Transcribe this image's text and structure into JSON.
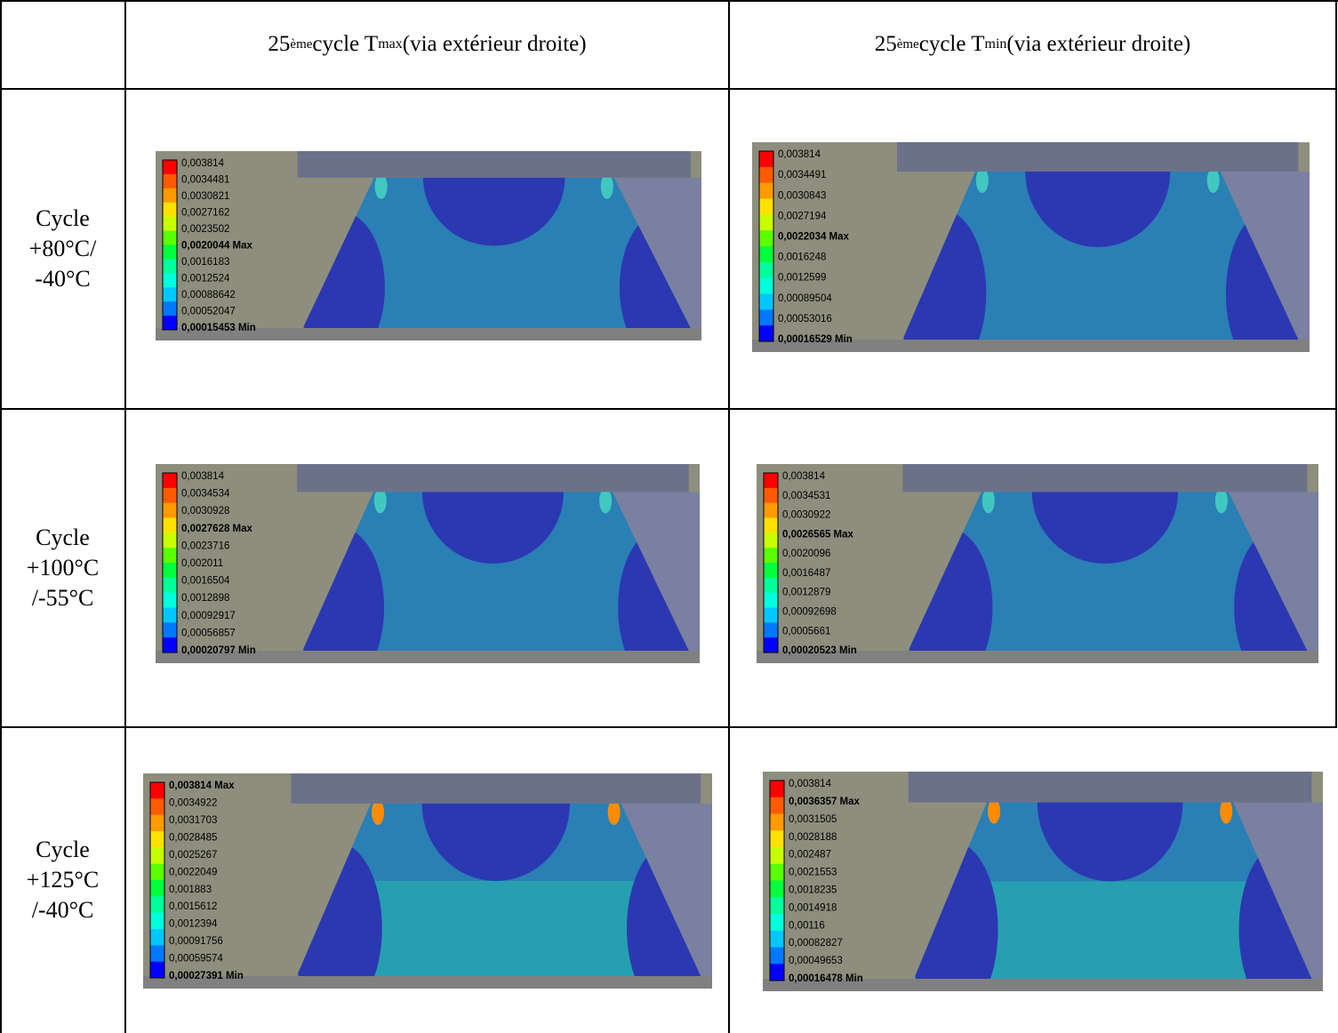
{
  "table": {
    "header": [
      {
        "number": "25",
        "superscript": "ème",
        "text": "cycle T",
        "subscript": "max",
        "note": "(via extérieur droite)"
      },
      {
        "number": "25",
        "superscript": "ème",
        "text": "cycle T",
        "subscript": "min",
        "note": "(via extérieur droite)"
      }
    ],
    "rows": [
      {
        "label": [
          "Cycle",
          "+80°C/",
          "-40°C"
        ],
        "cells": [
          {
            "legend": [
              {
                "text": "0,003814"
              },
              {
                "text": "0,0034481"
              },
              {
                "text": "0,0030821"
              },
              {
                "text": "0,0027162"
              },
              {
                "text": "0,0023502"
              },
              {
                "text": "0,0020044 Max",
                "bold": true
              },
              {
                "text": "0,0016183"
              },
              {
                "text": "0,0012524"
              },
              {
                "text": "0,00088642"
              },
              {
                "text": "0,00052047"
              },
              {
                "text": "0,00015453 Min",
                "bold": true
              }
            ]
          },
          {
            "legend": [
              {
                "text": "0,003814"
              },
              {
                "text": "0,0034491"
              },
              {
                "text": "0,0030843"
              },
              {
                "text": "0,0027194"
              },
              {
                "text": "0,0022034 Max",
                "bold": true
              },
              {
                "text": "0,0016248"
              },
              {
                "text": "0,0012599"
              },
              {
                "text": "0,00089504"
              },
              {
                "text": "0,00053016"
              },
              {
                "text": "0,00016529 Min",
                "bold": true
              }
            ]
          }
        ]
      },
      {
        "label": [
          "Cycle",
          "+100°C",
          "/-55°C"
        ],
        "cells": [
          {
            "legend": [
              {
                "text": "0,003814"
              },
              {
                "text": "0,0034534"
              },
              {
                "text": "0,0030928"
              },
              {
                "text": "0,0027628 Max",
                "bold": true
              },
              {
                "text": "0,0023716"
              },
              {
                "text": "0,002011"
              },
              {
                "text": "0,0016504"
              },
              {
                "text": "0,0012898"
              },
              {
                "text": "0,00092917"
              },
              {
                "text": "0,00056857"
              },
              {
                "text": "0,00020797 Min",
                "bold": true
              }
            ]
          },
          {
            "legend": [
              {
                "text": "0,003814"
              },
              {
                "text": "0,0034531"
              },
              {
                "text": "0,0030922"
              },
              {
                "text": "0,0026565 Max",
                "bold": true
              },
              {
                "text": "0,0020096"
              },
              {
                "text": "0,0016487"
              },
              {
                "text": "0,0012879"
              },
              {
                "text": "0,00092698"
              },
              {
                "text": "0,0005661"
              },
              {
                "text": "0,00020523 Min",
                "bold": true
              }
            ]
          }
        ]
      },
      {
        "label": [
          "Cycle",
          "+125°C",
          "/-40°C"
        ],
        "cells": [
          {
            "legend": [
              {
                "text": "0,003814 Max",
                "bold": true
              },
              {
                "text": "0,0034922"
              },
              {
                "text": "0,0031703"
              },
              {
                "text": "0,0028485"
              },
              {
                "text": "0,0025267"
              },
              {
                "text": "0,0022049"
              },
              {
                "text": "0,001883"
              },
              {
                "text": "0,0015612"
              },
              {
                "text": "0,0012394"
              },
              {
                "text": "0,00091756"
              },
              {
                "text": "0,00059574"
              },
              {
                "text": "0,00027391 Min",
                "bold": true
              }
            ]
          },
          {
            "legend": [
              {
                "text": "0,003814"
              },
              {
                "text": "0,0036357 Max",
                "bold": true
              },
              {
                "text": "0,0031505"
              },
              {
                "text": "0,0028188"
              },
              {
                "text": "0,002487"
              },
              {
                "text": "0,0021553"
              },
              {
                "text": "0,0018235"
              },
              {
                "text": "0,0014918"
              },
              {
                "text": "0,00116"
              },
              {
                "text": "0,00082827"
              },
              {
                "text": "0,00049653"
              },
              {
                "text": "0,00016478 Min",
                "bold": true
              }
            ]
          }
        ]
      }
    ]
  }
}
